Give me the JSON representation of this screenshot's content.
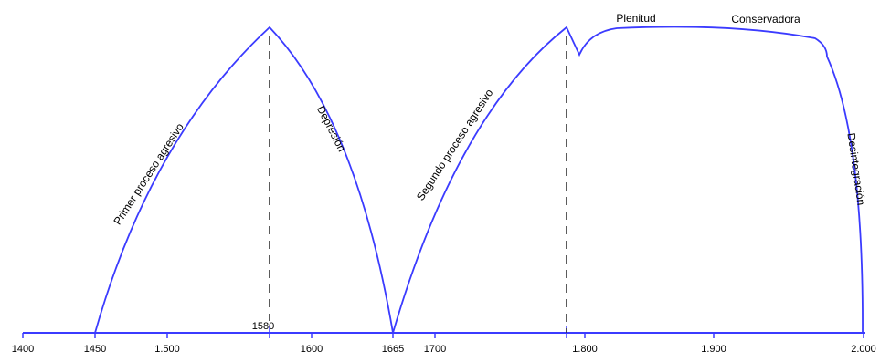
{
  "colors": {
    "curve": "#3b3bff",
    "axis": "#3b3bff",
    "marker": "#333333",
    "text": "#000000"
  },
  "axis": {
    "tick_labels": [
      "1400",
      "1450",
      "1.500",
      "1600",
      "1665",
      "1700",
      "1.800",
      "1.900",
      "2.000"
    ],
    "marker_label": "1580"
  },
  "labels": {
    "phase1": "Primer proceso agresivo",
    "phase2": "Depresión",
    "phase3": "Segundo proceso agresivo",
    "phase4": "Plenitud",
    "phase5": "Conservadora",
    "phase6": "Desintegración"
  }
}
